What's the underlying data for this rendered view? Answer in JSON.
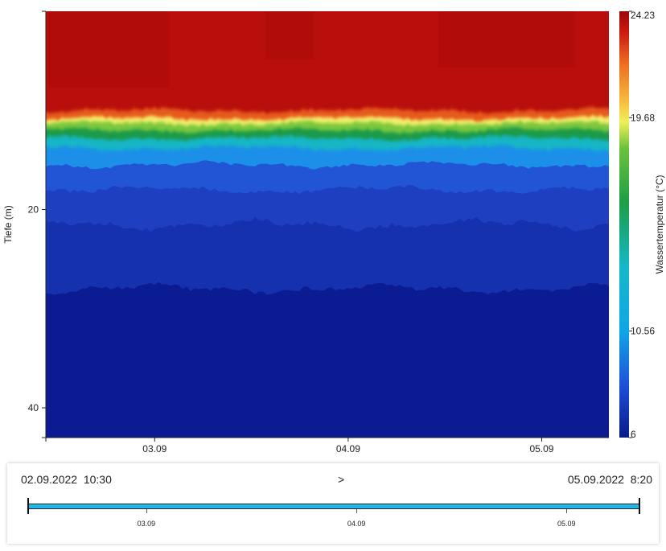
{
  "chart_data": {
    "type": "heatmap",
    "title": "",
    "xlabel": "",
    "ylabel": "Tiefe (m)",
    "x_tick_labels": [
      "03.09",
      "04.09",
      "05.09"
    ],
    "x_ticks": [
      {
        "label": "03.09",
        "datetime": "2022-09-03T00:00"
      },
      {
        "label": "04.09",
        "datetime": "2022-09-04T00:00"
      },
      {
        "label": "05.09",
        "datetime": "2022-09-05T00:00"
      }
    ],
    "x_range": [
      "2022-09-02T10:30",
      "2022-09-05T08:20"
    ],
    "y_ticks": [
      20,
      40
    ],
    "y_range_m": [
      0,
      43
    ],
    "y_inverted": true,
    "colorbar": {
      "label": "Wassertemperatur (°C)",
      "min": 6,
      "max": 24.23,
      "tick_labels": [
        "24.23",
        "19.68",
        "10.56",
        "6"
      ],
      "tick_values": [
        24.23,
        19.68,
        10.56,
        6
      ],
      "colors": [
        "#08198a",
        "#1e4fd8",
        "#10a6e6",
        "#14b8c8",
        "#1d9e46",
        "#6ec23c",
        "#f2ef5c",
        "#f6b23a",
        "#ec6a22",
        "#cc1a12",
        "#9c0806"
      ]
    },
    "depth_profile": {
      "description_free": true,
      "depth_m": [
        0,
        5,
        8,
        10,
        11,
        12,
        13,
        14,
        16,
        18,
        22,
        28,
        35,
        43
      ],
      "temperature_c": [
        24.0,
        23.8,
        23.4,
        22.6,
        19.8,
        15.0,
        12.2,
        10.8,
        9.5,
        8.8,
        8.0,
        7.3,
        6.5,
        6.1
      ]
    },
    "layer_boundaries_m": {
      "surface_warm_bottom": 10.0,
      "yellow_band": 10.8,
      "green_band": 12.0,
      "cyan_band": 13.8,
      "light_blue_bottom": 15.5,
      "mid_blue_1": 18.0,
      "mid_blue_2": 21.5,
      "deep_blue_top": 28.0
    }
  },
  "range_selector": {
    "start_label": "02.09.2022  10:30",
    "separator": ">",
    "end_label": "05.09.2022  8:20",
    "tick_labels": [
      "03.09",
      "04.09",
      "05.09"
    ],
    "track_color": "#1fb6e9"
  }
}
